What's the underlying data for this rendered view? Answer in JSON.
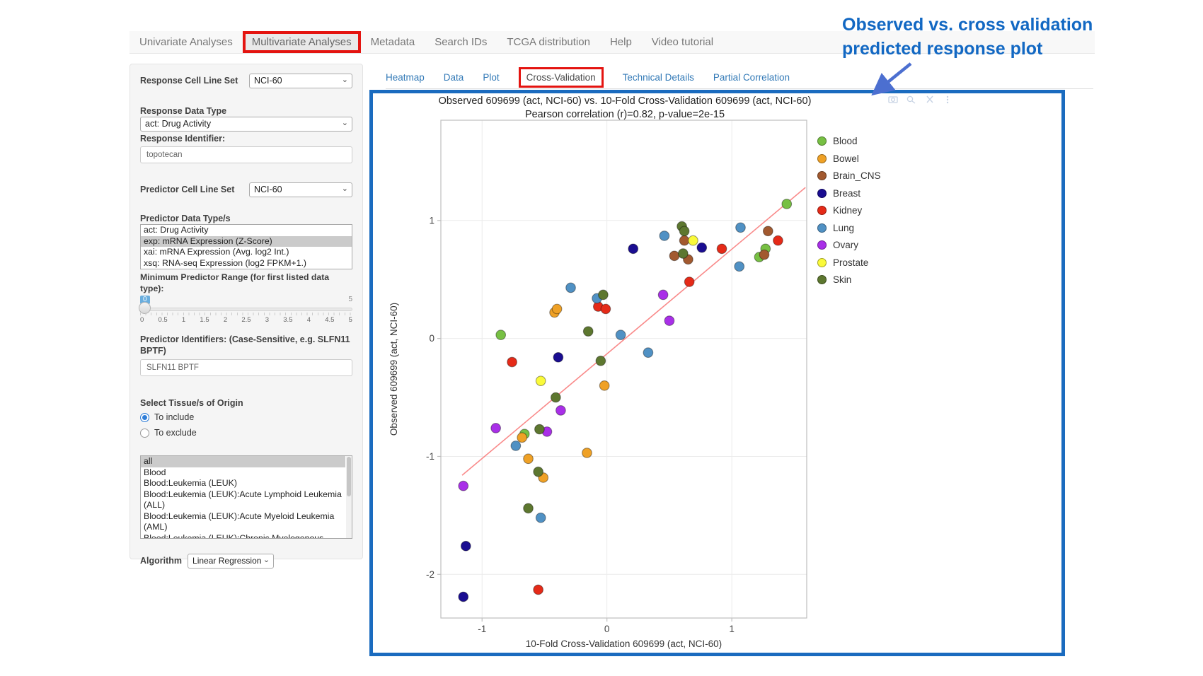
{
  "nav": {
    "items": [
      {
        "label": "Univariate Analyses",
        "highlighted": false
      },
      {
        "label": "Multivariate Analyses",
        "highlighted": true
      },
      {
        "label": "Metadata",
        "highlighted": false
      },
      {
        "label": "Search IDs",
        "highlighted": false
      },
      {
        "label": "TCGA distribution",
        "highlighted": false
      },
      {
        "label": "Help",
        "highlighted": false
      },
      {
        "label": "Video tutorial",
        "highlighted": false
      }
    ]
  },
  "sidebar": {
    "response_cell_line_set": {
      "label": "Response Cell Line Set",
      "value": "NCI-60"
    },
    "response_data_type": {
      "label": "Response Data Type",
      "value": "act: Drug Activity"
    },
    "response_identifier": {
      "label": "Response Identifier:",
      "value": "topotecan"
    },
    "predictor_cell_line_set": {
      "label": "Predictor Cell Line Set",
      "value": "NCI-60"
    },
    "predictor_data_types": {
      "label": "Predictor Data Type/s",
      "options": [
        "act: Drug Activity",
        "exp: mRNA Expression (Z-Score)",
        "xai: mRNA Expression (Avg. log2 Int.)",
        "xsq: RNA-seq Expression (log2 FPKM+1.)"
      ],
      "selected": "exp: mRNA Expression (Z-Score)"
    },
    "min_predictor_range": {
      "label": "Minimum Predictor Range (for first listed data type):",
      "value": "0",
      "max_label": "5",
      "ticks": [
        "0",
        "0.5",
        "1",
        "1.5",
        "2",
        "2.5",
        "3",
        "3.5",
        "4",
        "4.5",
        "5"
      ]
    },
    "predictor_identifiers": {
      "label": "Predictor Identifiers: (Case-Sensitive, e.g. SLFN11 BPTF)",
      "value": "SLFN11 BPTF"
    },
    "tissue_origin": {
      "label": "Select Tissue/s of Origin",
      "radios": [
        {
          "label": "To include",
          "checked": true
        },
        {
          "label": "To exclude",
          "checked": false
        }
      ],
      "options": [
        "all",
        "Blood",
        "Blood:Leukemia (LEUK)",
        "Blood:Leukemia (LEUK):Acute Lymphoid Leukemia (ALL)",
        "Blood:Leukemia (LEUK):Acute Myeloid Leukemia (AML)",
        "Blood:Leukemia (LEUK):Chronic Myelogenous Leukemia (CML)"
      ],
      "selected": "all"
    },
    "algorithm": {
      "label": "Algorithm",
      "value": "Linear Regression"
    }
  },
  "subtabs": {
    "items": [
      {
        "label": "Heatmap",
        "active": false,
        "highlighted": false
      },
      {
        "label": "Data",
        "active": false,
        "highlighted": false
      },
      {
        "label": "Plot",
        "active": false,
        "highlighted": false
      },
      {
        "label": "Cross-Validation",
        "active": true,
        "highlighted": true
      },
      {
        "label": "Technical Details",
        "active": false,
        "highlighted": false
      },
      {
        "label": "Partial Correlation",
        "active": false,
        "highlighted": false
      }
    ]
  },
  "annotation": {
    "text_line1": "Observed vs. cross validation",
    "text_line2": "predicted response plot",
    "text_color": "#1268c3",
    "arrow_color": "#4c6fd0"
  },
  "modebar": {
    "icons": [
      "camera-icon",
      "zoom-icon",
      "close-icon",
      "more-icon"
    ]
  },
  "panel": {
    "border_color": "#1a6bbf"
  },
  "chart_data": {
    "type": "scatter",
    "title": "Observed 609699 (act, NCI-60) vs. 10-Fold Cross-Validation 609699 (act, NCI-60)",
    "subtitle": "Pearson correlation (r)=0.82, p-value=2e-15",
    "xlabel": "10-Fold Cross-Validation 609699 (act, NCI-60)",
    "ylabel": "Observed 609699 (act, NCI-60)",
    "xlim": [
      -1.33,
      1.6
    ],
    "ylim": [
      -2.37,
      1.85
    ],
    "xticks": [
      -1,
      0,
      1
    ],
    "yticks": [
      1,
      0,
      -1,
      -2
    ],
    "grid": true,
    "legend_position": "right",
    "trendline": {
      "x": [
        -1.16,
        1.59
      ],
      "y": [
        -1.16,
        1.28
      ],
      "color": "#f98a8a"
    },
    "series": [
      {
        "name": "Blood",
        "color": "#77c043",
        "points": [
          [
            -0.85,
            0.03
          ],
          [
            1.44,
            1.14
          ],
          [
            1.27,
            0.76
          ],
          [
            1.22,
            0.69
          ],
          [
            -0.66,
            -0.81
          ]
        ]
      },
      {
        "name": "Bowel",
        "color": "#efa126",
        "points": [
          [
            -0.42,
            0.22
          ],
          [
            -0.4,
            0.25
          ],
          [
            -0.02,
            -0.4
          ],
          [
            -0.68,
            -0.84
          ],
          [
            -0.63,
            -1.02
          ],
          [
            -0.16,
            -0.97
          ],
          [
            -0.51,
            -1.18
          ]
        ]
      },
      {
        "name": "Brain_CNS",
        "color": "#a2592f",
        "points": [
          [
            0.62,
            0.83
          ],
          [
            0.54,
            0.7
          ],
          [
            0.65,
            0.67
          ],
          [
            1.29,
            0.91
          ],
          [
            1.26,
            0.71
          ]
        ]
      },
      {
        "name": "Breast",
        "color": "#1a0d91",
        "points": [
          [
            0.21,
            0.76
          ],
          [
            0.76,
            0.77
          ],
          [
            -0.39,
            -0.16
          ],
          [
            -1.13,
            -1.76
          ],
          [
            -1.15,
            -2.19
          ]
        ]
      },
      {
        "name": "Kidney",
        "color": "#e52a18",
        "points": [
          [
            -0.07,
            0.27
          ],
          [
            -0.01,
            0.25
          ],
          [
            0.92,
            0.76
          ],
          [
            1.37,
            0.83
          ],
          [
            0.66,
            0.48
          ],
          [
            -0.76,
            -0.2
          ],
          [
            -0.55,
            -2.13
          ]
        ]
      },
      {
        "name": "Lung",
        "color": "#5091c4",
        "points": [
          [
            -0.29,
            0.43
          ],
          [
            -0.08,
            0.34
          ],
          [
            0.46,
            0.87
          ],
          [
            1.07,
            0.94
          ],
          [
            1.06,
            0.61
          ],
          [
            0.11,
            0.03
          ],
          [
            0.33,
            -0.12
          ],
          [
            -0.73,
            -0.91
          ],
          [
            -0.53,
            -1.52
          ]
        ]
      },
      {
        "name": "Ovary",
        "color": "#a92fe8",
        "points": [
          [
            0.45,
            0.37
          ],
          [
            0.5,
            0.15
          ],
          [
            -0.37,
            -0.61
          ],
          [
            -0.89,
            -0.76
          ],
          [
            -0.48,
            -0.79
          ],
          [
            -1.15,
            -1.25
          ]
        ]
      },
      {
        "name": "Prostate",
        "color": "#fafa3a",
        "points": [
          [
            0.69,
            0.83
          ],
          [
            -0.53,
            -0.36
          ]
        ]
      },
      {
        "name": "Skin",
        "color": "#5d772f",
        "points": [
          [
            -0.03,
            0.37
          ],
          [
            -0.15,
            0.06
          ],
          [
            0.6,
            0.95
          ],
          [
            0.62,
            0.91
          ],
          [
            0.61,
            0.72
          ],
          [
            -0.05,
            -0.19
          ],
          [
            -0.41,
            -0.5
          ],
          [
            -0.54,
            -0.77
          ],
          [
            -0.55,
            -1.13
          ],
          [
            -0.63,
            -1.44
          ]
        ]
      }
    ]
  }
}
